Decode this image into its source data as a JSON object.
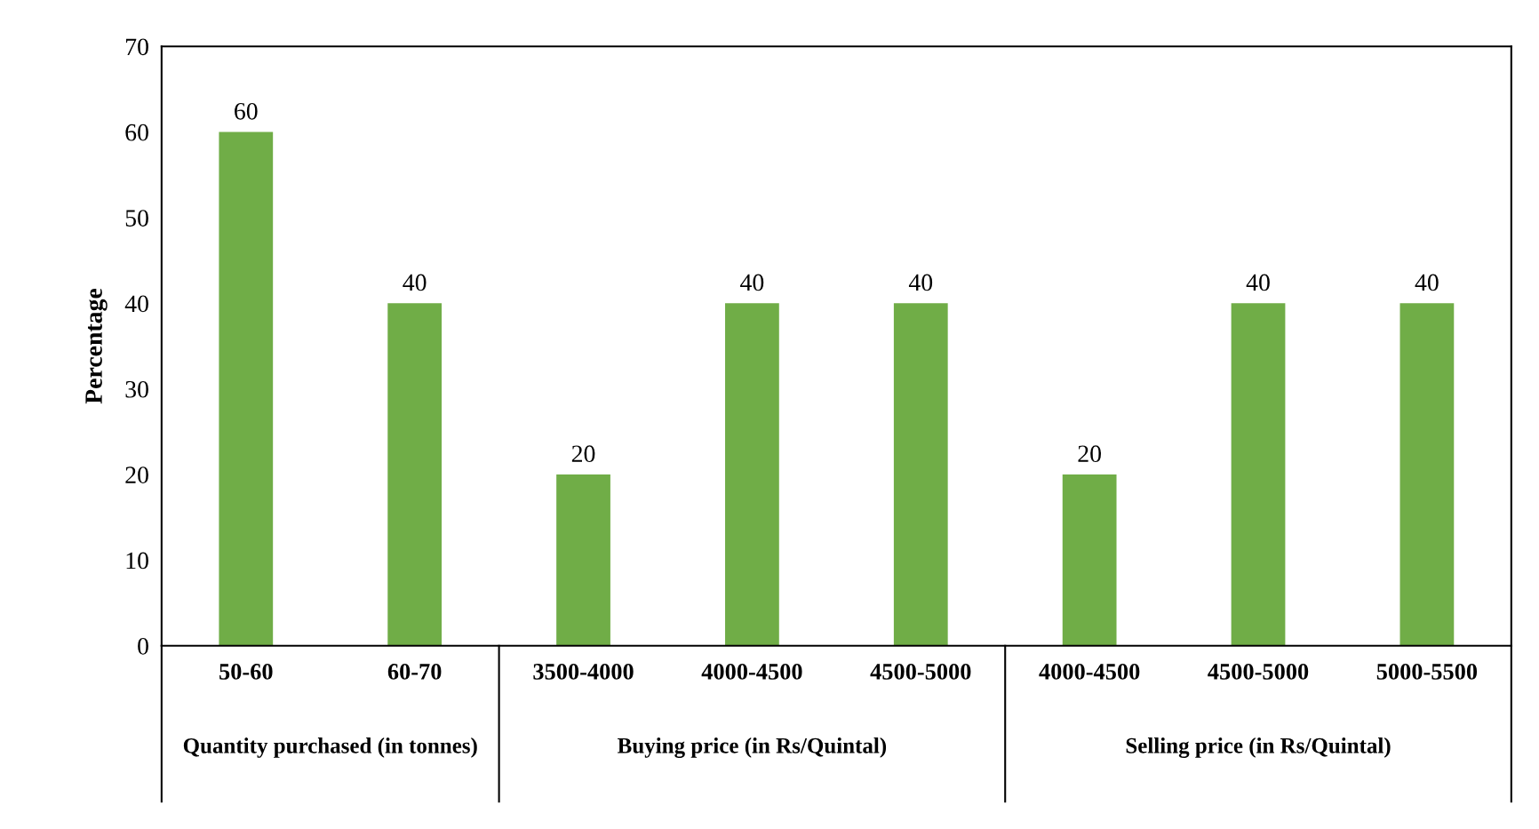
{
  "chart_data": {
    "type": "bar",
    "ylabel": "Percentage",
    "categories": [
      "50-60",
      "60-70",
      "3500-4000",
      "4000-4500",
      "4500-5000",
      "4000-4500",
      "4500-5000",
      "5000-5500"
    ],
    "values": [
      60,
      40,
      20,
      40,
      40,
      20,
      40,
      40
    ],
    "color": "#70ad47",
    "ylim": [
      0,
      70
    ],
    "yticks": [
      0,
      10,
      20,
      30,
      40,
      50,
      60,
      70
    ],
    "data_labels": true,
    "grid": false,
    "annotations": [
      "Quantity purchased (in tonnes)",
      "Buying price (in Rs/Quintal)",
      "Selling price (in Rs/Quintal)"
    ]
  }
}
